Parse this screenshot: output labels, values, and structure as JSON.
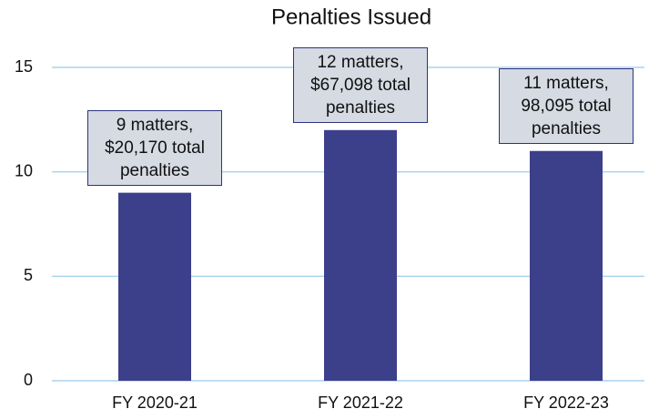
{
  "chart_data": {
    "type": "bar",
    "title": "Penalties Issued",
    "categories": [
      "FY 2020-21",
      "FY 2021-22",
      "FY 2022-23"
    ],
    "values": [
      9,
      12,
      11
    ],
    "value_labels": [
      "9 matters, $20,170 total penalties",
      "12 matters, $67,098 total penalties",
      "11 matters, 98,095 total penalties"
    ],
    "color": "#3c3f8a",
    "ylim": [
      0,
      15
    ],
    "yticks": [
      0,
      5,
      10,
      15
    ],
    "grid": true
  }
}
